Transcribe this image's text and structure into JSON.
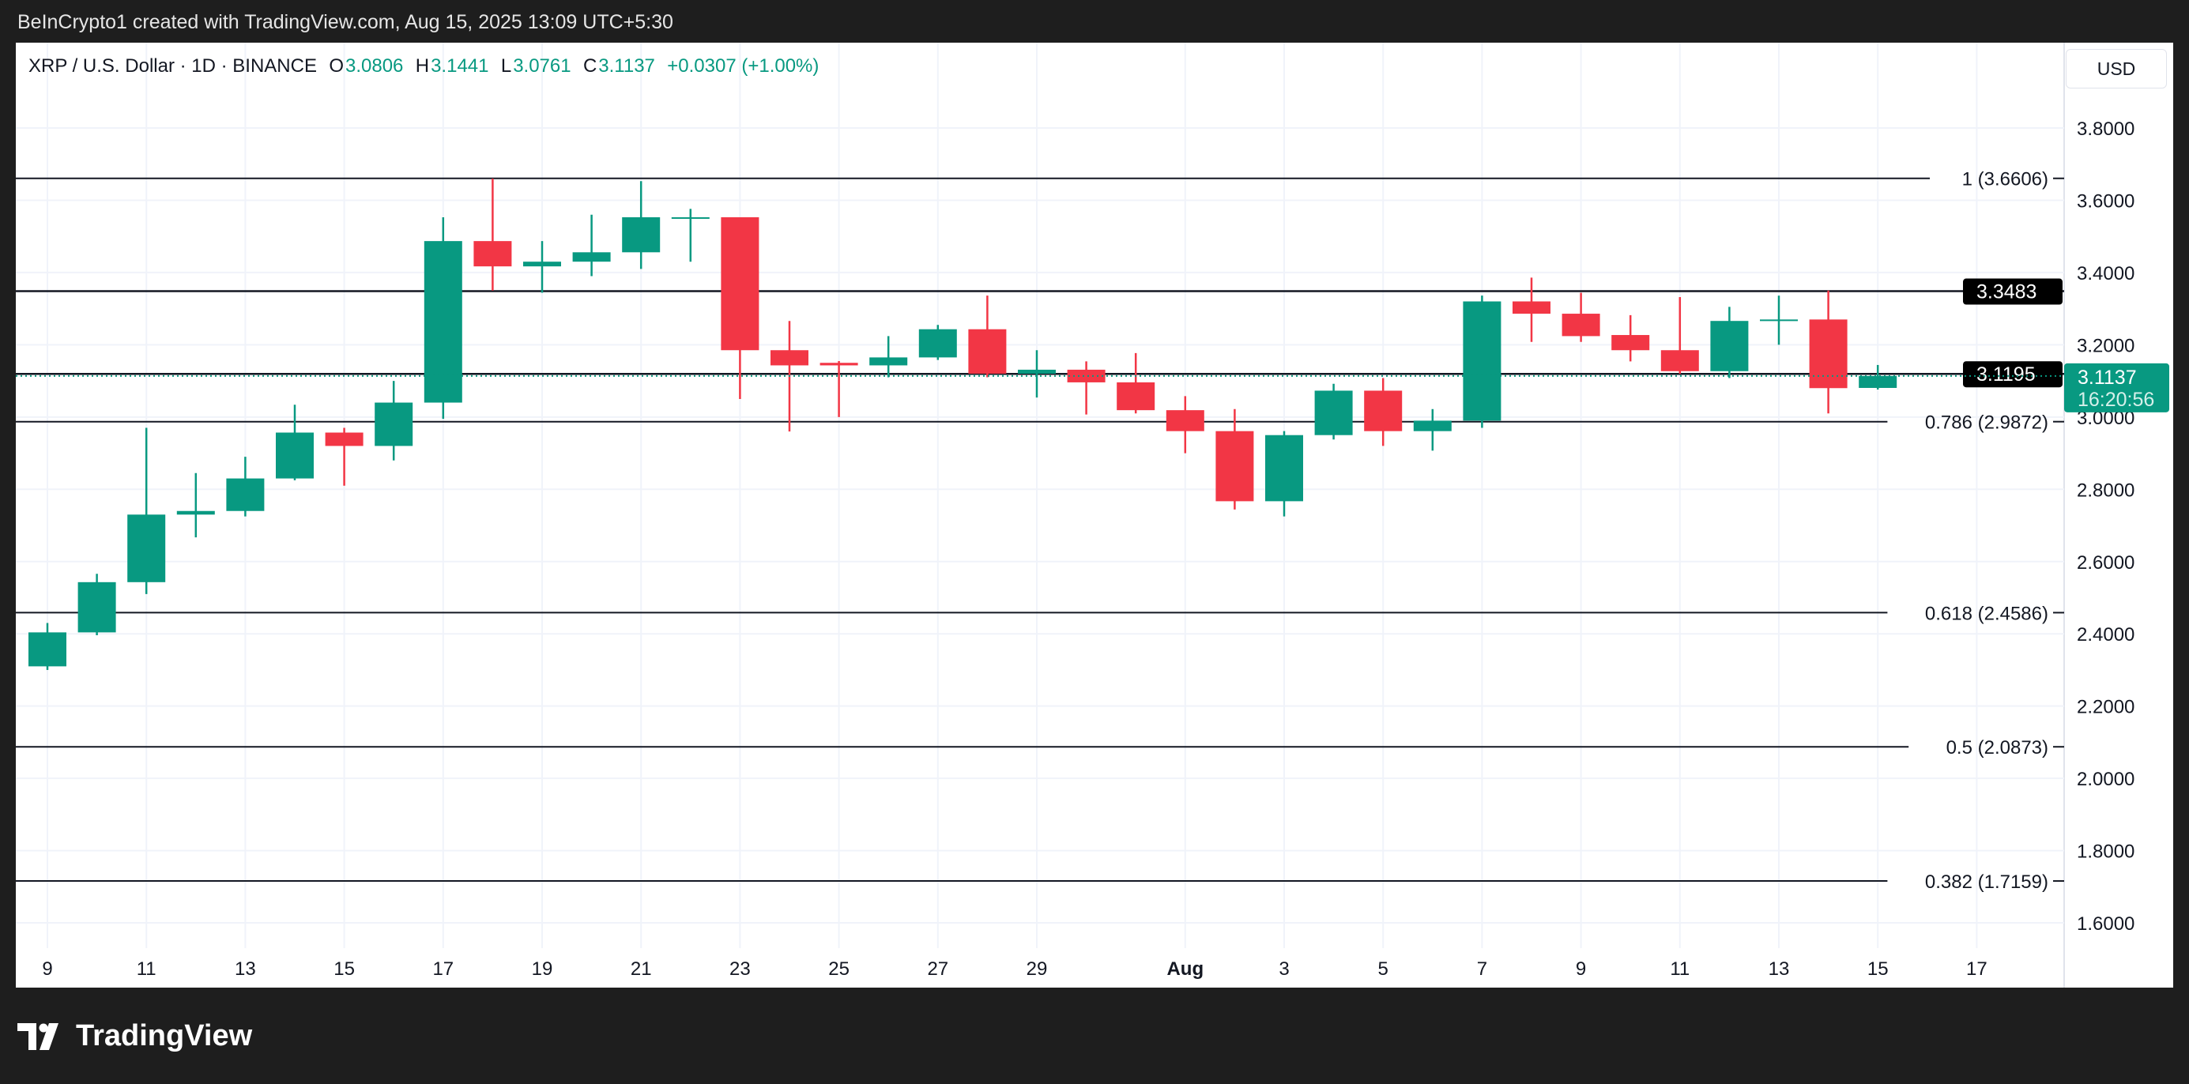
{
  "credit": "BeInCrypto1 created with TradingView.com, Aug 15, 2025 13:09 UTC+5:30",
  "legend": {
    "symbol": "XRP / U.S. Dollar · 1D · BINANCE",
    "o_label": "O",
    "o": "3.0806",
    "h_label": "H",
    "h": "3.1441",
    "l_label": "L",
    "l": "3.0761",
    "c_label": "C",
    "c": "3.1137",
    "change": "+0.0307 (+1.00%)"
  },
  "currency_button": "USD",
  "footer_brand": "TradingView",
  "colors": {
    "up": "#089981",
    "down": "#f23645",
    "grid": "#f0f3fa",
    "text": "#131722"
  },
  "chart_data": {
    "type": "candlestick",
    "ylim": [
      1.5,
      3.9
    ],
    "y_ticks": [
      "3.8000",
      "3.6000",
      "3.4000",
      "3.2000",
      "3.0000",
      "2.8000",
      "2.6000",
      "2.4000",
      "2.2000",
      "2.0000",
      "1.8000",
      "1.6000"
    ],
    "x_ticks": [
      {
        "day": "2025-07-09",
        "label": "9"
      },
      {
        "day": "2025-07-11",
        "label": "11"
      },
      {
        "day": "2025-07-13",
        "label": "13"
      },
      {
        "day": "2025-07-15",
        "label": "15"
      },
      {
        "day": "2025-07-17",
        "label": "17"
      },
      {
        "day": "2025-07-19",
        "label": "19"
      },
      {
        "day": "2025-07-21",
        "label": "21"
      },
      {
        "day": "2025-07-23",
        "label": "23"
      },
      {
        "day": "2025-07-25",
        "label": "25"
      },
      {
        "day": "2025-07-27",
        "label": "27"
      },
      {
        "day": "2025-07-29",
        "label": "29"
      },
      {
        "day": "2025-08-01",
        "label": "Aug"
      },
      {
        "day": "2025-08-03",
        "label": "3"
      },
      {
        "day": "2025-08-05",
        "label": "5"
      },
      {
        "day": "2025-08-07",
        "label": "7"
      },
      {
        "day": "2025-08-09",
        "label": "9"
      },
      {
        "day": "2025-08-11",
        "label": "11"
      },
      {
        "day": "2025-08-13",
        "label": "13"
      },
      {
        "day": "2025-08-15",
        "label": "15"
      },
      {
        "day": "2025-08-17",
        "label": "17"
      }
    ],
    "x_range": [
      "2025-07-08",
      "2025-08-19"
    ],
    "candles": [
      {
        "date": "2025-07-09",
        "o": 2.31,
        "h": 2.43,
        "l": 2.3,
        "c": 2.404
      },
      {
        "date": "2025-07-10",
        "o": 2.404,
        "h": 2.566,
        "l": 2.396,
        "c": 2.543
      },
      {
        "date": "2025-07-11",
        "o": 2.543,
        "h": 2.97,
        "l": 2.51,
        "c": 2.73
      },
      {
        "date": "2025-07-12",
        "o": 2.73,
        "h": 2.845,
        "l": 2.667,
        "c": 2.74
      },
      {
        "date": "2025-07-13",
        "o": 2.74,
        "h": 2.89,
        "l": 2.725,
        "c": 2.83
      },
      {
        "date": "2025-07-14",
        "o": 2.83,
        "h": 3.034,
        "l": 2.825,
        "c": 2.957
      },
      {
        "date": "2025-07-15",
        "o": 2.957,
        "h": 2.97,
        "l": 2.81,
        "c": 2.92
      },
      {
        "date": "2025-07-16",
        "o": 2.92,
        "h": 3.1,
        "l": 2.88,
        "c": 3.04
      },
      {
        "date": "2025-07-17",
        "o": 3.04,
        "h": 3.553,
        "l": 2.995,
        "c": 3.487
      },
      {
        "date": "2025-07-18",
        "o": 3.487,
        "h": 3.66,
        "l": 3.35,
        "c": 3.417
      },
      {
        "date": "2025-07-19",
        "o": 3.417,
        "h": 3.487,
        "l": 3.344,
        "c": 3.43
      },
      {
        "date": "2025-07-20",
        "o": 3.43,
        "h": 3.56,
        "l": 3.39,
        "c": 3.456
      },
      {
        "date": "2025-07-21",
        "o": 3.456,
        "h": 3.653,
        "l": 3.41,
        "c": 3.553
      },
      {
        "date": "2025-07-22",
        "o": 3.55,
        "h": 3.576,
        "l": 3.43,
        "c": 3.553
      },
      {
        "date": "2025-07-23",
        "o": 3.553,
        "h": 3.553,
        "l": 3.05,
        "c": 3.185
      },
      {
        "date": "2025-07-24",
        "o": 3.185,
        "h": 3.266,
        "l": 2.96,
        "c": 3.143
      },
      {
        "date": "2025-07-25",
        "o": 3.15,
        "h": 3.155,
        "l": 3.0,
        "c": 3.143
      },
      {
        "date": "2025-07-26",
        "o": 3.143,
        "h": 3.224,
        "l": 3.11,
        "c": 3.165
      },
      {
        "date": "2025-07-27",
        "o": 3.165,
        "h": 3.255,
        "l": 3.158,
        "c": 3.243
      },
      {
        "date": "2025-07-28",
        "o": 3.243,
        "h": 3.336,
        "l": 3.11,
        "c": 3.12
      },
      {
        "date": "2025-07-29",
        "o": 3.12,
        "h": 3.185,
        "l": 3.054,
        "c": 3.131
      },
      {
        "date": "2025-07-30",
        "o": 3.131,
        "h": 3.154,
        "l": 3.007,
        "c": 3.096
      },
      {
        "date": "2025-07-31",
        "o": 3.096,
        "h": 3.177,
        "l": 3.01,
        "c": 3.019
      },
      {
        "date": "2025-08-01",
        "o": 3.019,
        "h": 3.058,
        "l": 2.9,
        "c": 2.961
      },
      {
        "date": "2025-08-02",
        "o": 2.961,
        "h": 3.022,
        "l": 2.744,
        "c": 2.767
      },
      {
        "date": "2025-08-03",
        "o": 2.767,
        "h": 2.961,
        "l": 2.725,
        "c": 2.95
      },
      {
        "date": "2025-08-04",
        "o": 2.95,
        "h": 3.092,
        "l": 2.938,
        "c": 3.073
      },
      {
        "date": "2025-08-05",
        "o": 3.073,
        "h": 3.108,
        "l": 2.92,
        "c": 2.961
      },
      {
        "date": "2025-08-06",
        "o": 2.961,
        "h": 3.022,
        "l": 2.907,
        "c": 2.99
      },
      {
        "date": "2025-08-07",
        "o": 2.99,
        "h": 3.336,
        "l": 2.97,
        "c": 3.32
      },
      {
        "date": "2025-08-08",
        "o": 3.32,
        "h": 3.386,
        "l": 3.208,
        "c": 3.286
      },
      {
        "date": "2025-08-09",
        "o": 3.286,
        "h": 3.344,
        "l": 3.208,
        "c": 3.224
      },
      {
        "date": "2025-08-10",
        "o": 3.227,
        "h": 3.282,
        "l": 3.154,
        "c": 3.185
      },
      {
        "date": "2025-08-11",
        "o": 3.185,
        "h": 3.332,
        "l": 3.12,
        "c": 3.127
      },
      {
        "date": "2025-08-12",
        "o": 3.127,
        "h": 3.305,
        "l": 3.108,
        "c": 3.266
      },
      {
        "date": "2025-08-13",
        "o": 3.266,
        "h": 3.336,
        "l": 3.2,
        "c": 3.27
      },
      {
        "date": "2025-08-14",
        "o": 3.27,
        "h": 3.35,
        "l": 3.01,
        "c": 3.08
      },
      {
        "date": "2025-08-15",
        "o": 3.0806,
        "h": 3.1441,
        "l": 3.0761,
        "c": 3.1137
      }
    ],
    "fib_levels": [
      {
        "value": 3.6606,
        "label": "1 (3.6606)"
      },
      {
        "value": 2.9872,
        "label": "0.786 (2.9872)"
      },
      {
        "value": 2.4586,
        "label": "0.618 (2.4586)"
      },
      {
        "value": 2.0873,
        "label": "0.5 (2.0873)"
      },
      {
        "value": 1.7159,
        "label": "0.382 (1.7159)"
      }
    ],
    "horizontal_lines": [
      {
        "value": 3.3483,
        "label": "3.3483"
      },
      {
        "value": 3.1195,
        "label": "3.1195"
      }
    ],
    "last_price": {
      "value": 3.1137,
      "label": "3.1137",
      "countdown": "16:20:56"
    }
  }
}
